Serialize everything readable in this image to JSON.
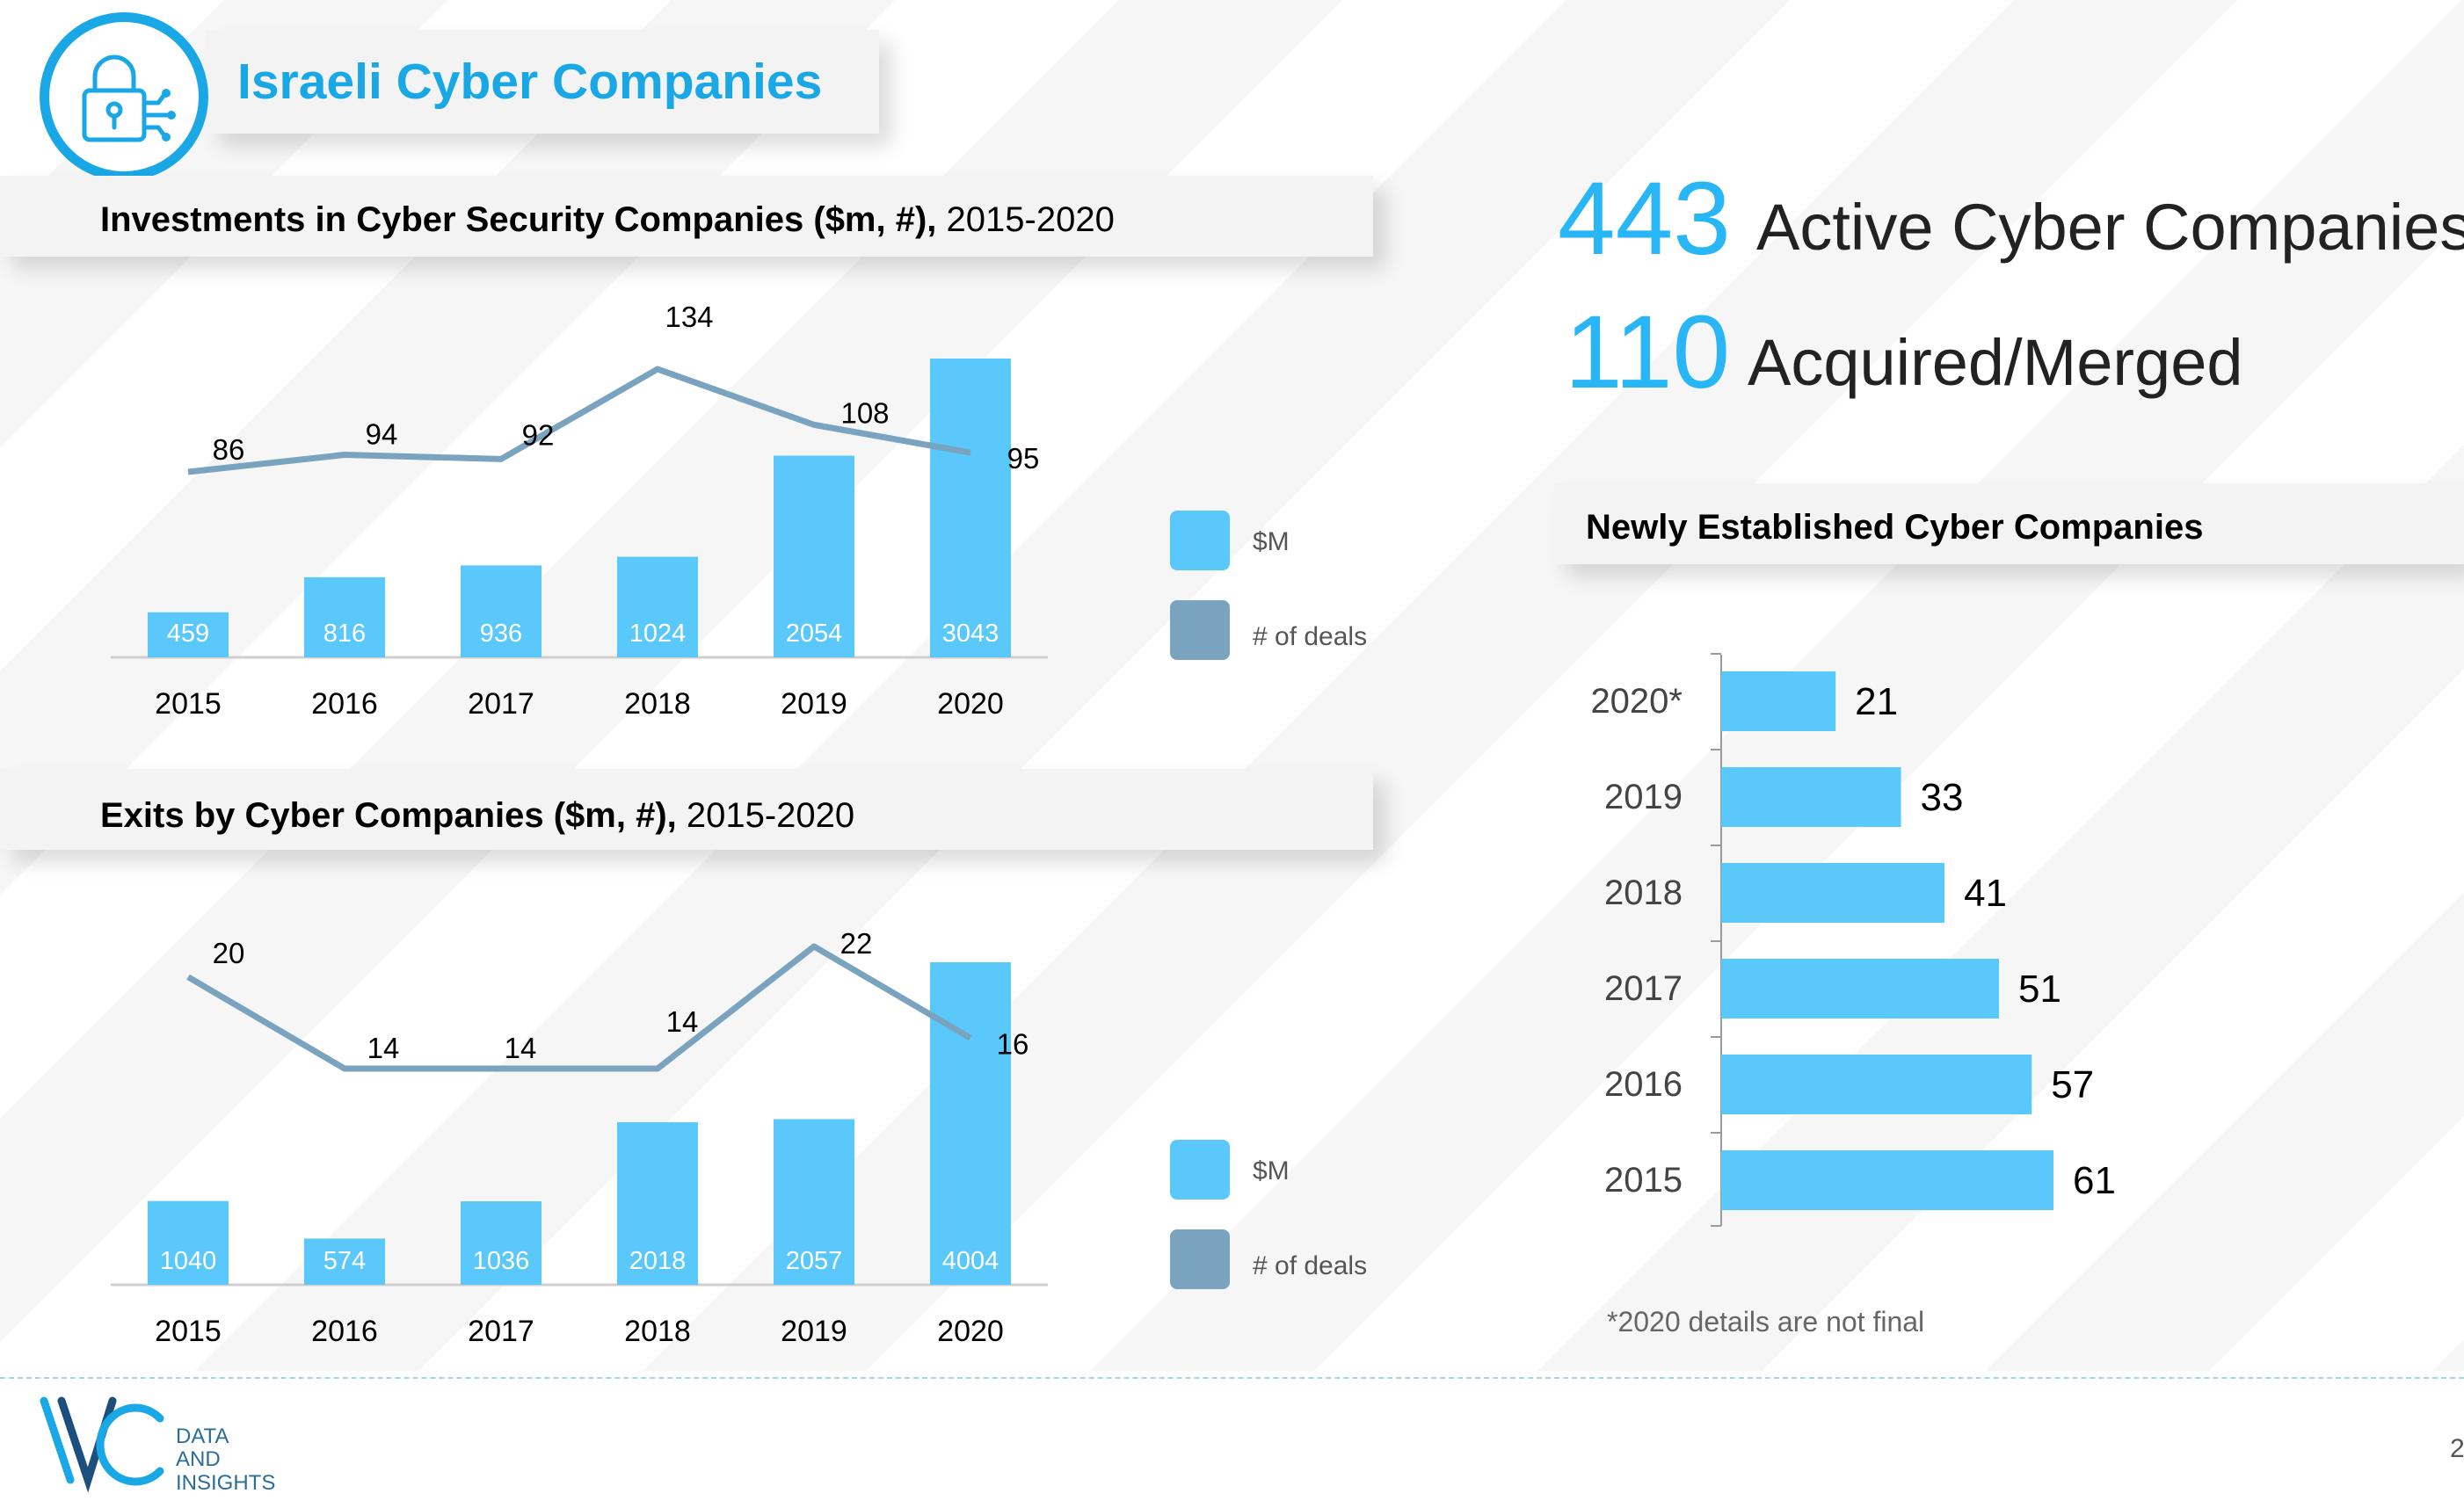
{
  "header": {
    "title": "Israeli Cyber Companies",
    "icon": "lock-circuit-icon",
    "accent_color": "#1aa7e6"
  },
  "investments": {
    "title_bold": "Investments in Cyber Security Companies ($m, #),",
    "title_years": " 2015-2020",
    "legend": {
      "amount_label": "$M",
      "deals_label": "# of deals"
    }
  },
  "exits": {
    "title_bold": "Exits by Cyber Companies ($m, #),",
    "title_years": " 2015-2020",
    "legend": {
      "amount_label": "$M",
      "deals_label": "# of deals"
    }
  },
  "stats": {
    "active_number": "443",
    "active_label": "Active Cyber Companies",
    "acquired_number": "110",
    "acquired_label": "Acquired/Merged"
  },
  "newly": {
    "title": "Newly Established Cyber Companies",
    "footnote": "*2020 details are not final"
  },
  "footer": {
    "brand_line1": "DATA",
    "brand_line2": "AND",
    "brand_line3": "INSIGHTS",
    "brand_logo": "IVC",
    "page_number": "2"
  },
  "colors": {
    "bar": "#5ac8fa",
    "line": "#7aa3c0",
    "newly_bar": "#5ac8fa"
  },
  "chart_data": [
    {
      "type": "bar",
      "title": "Investments in Cyber Security Companies ($m, #), 2015-2020",
      "categories": [
        "2015",
        "2016",
        "2017",
        "2018",
        "2019",
        "2020"
      ],
      "series": [
        {
          "name": "$M",
          "kind": "bar",
          "values": [
            459,
            816,
            936,
            1024,
            2054,
            3043
          ]
        },
        {
          "name": "# of deals",
          "kind": "line",
          "values": [
            86,
            94,
            92,
            134,
            108,
            95
          ]
        }
      ],
      "legend": "right"
    },
    {
      "type": "bar",
      "title": "Exits by Cyber Companies ($m, #), 2015-2020",
      "categories": [
        "2015",
        "2016",
        "2017",
        "2018",
        "2019",
        "2020"
      ],
      "series": [
        {
          "name": "$M",
          "kind": "bar",
          "values": [
            1040,
            574,
            1036,
            2018,
            2057,
            4004
          ]
        },
        {
          "name": "# of deals",
          "kind": "line",
          "values": [
            20,
            14,
            14,
            14,
            22,
            16
          ]
        }
      ],
      "legend": "right"
    },
    {
      "type": "bar",
      "orientation": "horizontal",
      "title": "Newly Established Cyber Companies",
      "categories": [
        "2020*",
        "2019",
        "2018",
        "2017",
        "2016",
        "2015"
      ],
      "values": [
        21,
        33,
        41,
        51,
        57,
        61
      ]
    }
  ]
}
